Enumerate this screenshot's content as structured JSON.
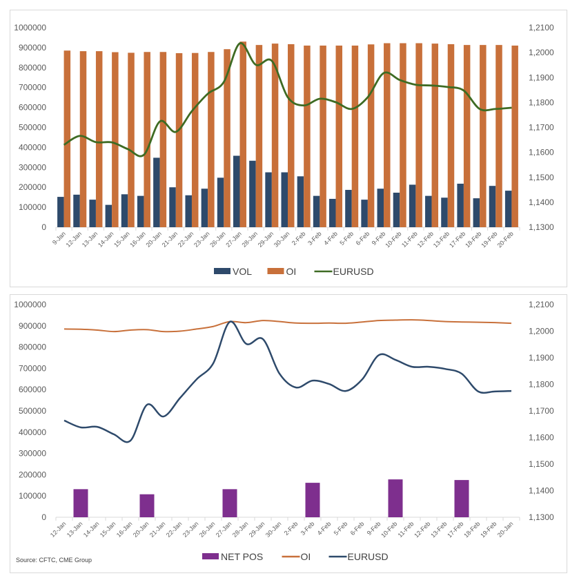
{
  "chart_data": [
    {
      "type": "bar+line",
      "title": "",
      "categories": [
        "9-Jan",
        "12-Jan",
        "13-Jan",
        "14-Jan",
        "15-Jan",
        "16-Jan",
        "20-Jan",
        "21-Jan",
        "22-Jan",
        "23-Jan",
        "26-Jan",
        "27-Jan",
        "28-Jan",
        "29-Jan",
        "30-Jan",
        "2-Feb",
        "3-Feb",
        "4-Feb",
        "5-Feb",
        "6-Feb",
        "9-Feb",
        "10-Feb",
        "11-Feb",
        "12-Feb",
        "13-Feb",
        "17-Feb",
        "18-Feb",
        "19-Feb",
        "20-Feb"
      ],
      "left_axis": {
        "ylim": [
          0,
          1000000
        ],
        "ticks": [
          "0",
          "100000",
          "200000",
          "300000",
          "400000",
          "500000",
          "600000",
          "700000",
          "800000",
          "900000",
          "1000000"
        ]
      },
      "right_axis": {
        "ylim": [
          1.13,
          1.21
        ],
        "ticks": [
          "1,1300",
          "1,1400",
          "1,1500",
          "1,1600",
          "1,1700",
          "1,1800",
          "1,1900",
          "1,2000",
          "1,2100"
        ]
      },
      "series": [
        {
          "name": "VOL",
          "kind": "bar",
          "axis": "left",
          "color": "#2E4A6B",
          "values": [
            152000,
            163000,
            138000,
            112000,
            165000,
            157000,
            348000,
            200000,
            160000,
            193000,
            248000,
            358000,
            333000,
            275000,
            275000,
            255000,
            157000,
            142000,
            187000,
            138000,
            193000,
            173000,
            213000,
            157000,
            148000,
            218000,
            145000,
            207000,
            183000
          ]
        },
        {
          "name": "OI",
          "kind": "bar",
          "axis": "left",
          "color": "#C8703A",
          "values": [
            885000,
            882000,
            882000,
            877000,
            874000,
            878000,
            878000,
            872000,
            873000,
            878000,
            892000,
            930000,
            913000,
            920000,
            917000,
            910000,
            910000,
            910000,
            910000,
            916000,
            922000,
            922000,
            922000,
            920000,
            917000,
            913000,
            913000,
            913000,
            910000
          ]
        },
        {
          "name": "EURUSD",
          "kind": "line",
          "axis": "right",
          "color": "#3E6B23",
          "values": [
            1.163,
            1.1666,
            1.1641,
            1.164,
            1.1613,
            1.159,
            1.1724,
            1.1682,
            1.1765,
            1.1835,
            1.1882,
            1.2037,
            1.1951,
            1.1967,
            1.1821,
            1.1788,
            1.1815,
            1.1801,
            1.1774,
            1.1821,
            1.1918,
            1.189,
            1.1871,
            1.1868,
            1.1862,
            1.1848,
            1.1774,
            1.1774,
            1.1779
          ]
        }
      ],
      "legend": "bottom"
    },
    {
      "type": "bar+line",
      "title": "",
      "categories": [
        "12-Jan",
        "13-Jan",
        "14-Jan",
        "15-Jan",
        "16-Jan",
        "20-Jan",
        "21-Jan",
        "22-Jan",
        "23-Jan",
        "26-Jan",
        "27-Jan",
        "28-Jan",
        "29-Jan",
        "30-Jan",
        "2-Feb",
        "3-Feb",
        "4-Feb",
        "5-Feb",
        "6-Feb",
        "9-Feb",
        "10-Feb",
        "11-Feb",
        "12-Feb",
        "13-Feb",
        "17-Feb",
        "18-Feb",
        "19-Feb",
        "20-Jan"
      ],
      "left_axis": {
        "ylim": [
          0,
          1000000
        ],
        "ticks": [
          "0",
          "100000",
          "200000",
          "300000",
          "400000",
          "500000",
          "600000",
          "700000",
          "800000",
          "900000",
          "1000000"
        ]
      },
      "right_axis": {
        "ylim": [
          1.13,
          1.21
        ],
        "ticks": [
          "1,1300",
          "1,1400",
          "1,1500",
          "1,1600",
          "1,1700",
          "1,1800",
          "1,1900",
          "1,2000",
          "1,2100"
        ]
      },
      "series": [
        {
          "name": "NET POS",
          "kind": "bar",
          "axis": "left",
          "color": "#7E2F8E",
          "values": [
            null,
            132000,
            null,
            null,
            null,
            108000,
            null,
            null,
            null,
            null,
            132000,
            null,
            null,
            null,
            null,
            162000,
            null,
            null,
            null,
            null,
            178000,
            null,
            null,
            null,
            175000,
            null,
            null,
            null
          ]
        },
        {
          "name": "OI",
          "kind": "line",
          "axis": "left",
          "color": "#C8703A",
          "values": [
            885000,
            884000,
            880000,
            873000,
            880000,
            882000,
            873000,
            875000,
            885000,
            897000,
            920000,
            915000,
            925000,
            920000,
            913000,
            912000,
            913000,
            912000,
            918000,
            925000,
            927000,
            928000,
            925000,
            920000,
            918000,
            917000,
            915000,
            912000
          ]
        },
        {
          "name": "EURUSD",
          "kind": "line",
          "axis": "right",
          "color": "#2E4A6B",
          "values": [
            1.1664,
            1.1638,
            1.164,
            1.1612,
            1.1588,
            1.1723,
            1.1679,
            1.1749,
            1.1819,
            1.1879,
            1.2035,
            1.1952,
            1.197,
            1.184,
            1.1788,
            1.1814,
            1.1801,
            1.1775,
            1.1819,
            1.191,
            1.1892,
            1.1866,
            1.1866,
            1.1858,
            1.184,
            1.1773,
            1.1773,
            1.1775
          ]
        }
      ],
      "legend": "bottom",
      "source": "Source: CFTC, CME Group"
    }
  ]
}
